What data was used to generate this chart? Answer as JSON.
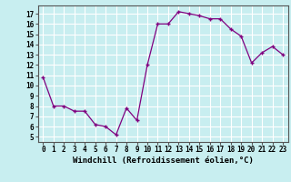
{
  "x": [
    0,
    1,
    2,
    3,
    4,
    5,
    6,
    7,
    8,
    9,
    10,
    11,
    12,
    13,
    14,
    15,
    16,
    17,
    18,
    19,
    20,
    21,
    22,
    23
  ],
  "y": [
    10.8,
    8.0,
    8.0,
    7.5,
    7.5,
    6.2,
    6.0,
    5.2,
    7.8,
    6.6,
    12.0,
    16.0,
    16.0,
    17.2,
    17.0,
    16.8,
    16.5,
    16.5,
    15.5,
    14.8,
    12.2,
    13.2,
    13.8,
    13.0
  ],
  "xlim": [
    -0.5,
    23.5
  ],
  "ylim": [
    4.5,
    17.8
  ],
  "yticks": [
    5,
    6,
    7,
    8,
    9,
    10,
    11,
    12,
    13,
    14,
    15,
    16,
    17
  ],
  "xticks": [
    0,
    1,
    2,
    3,
    4,
    5,
    6,
    7,
    8,
    9,
    10,
    11,
    12,
    13,
    14,
    15,
    16,
    17,
    18,
    19,
    20,
    21,
    22,
    23
  ],
  "xlabel": "Windchill (Refroidissement éolien,°C)",
  "line_color": "#800080",
  "marker": "+",
  "bg_color": "#c8eef0",
  "grid_color": "#ffffff",
  "label_fontsize": 6.5,
  "tick_fontsize": 5.5
}
